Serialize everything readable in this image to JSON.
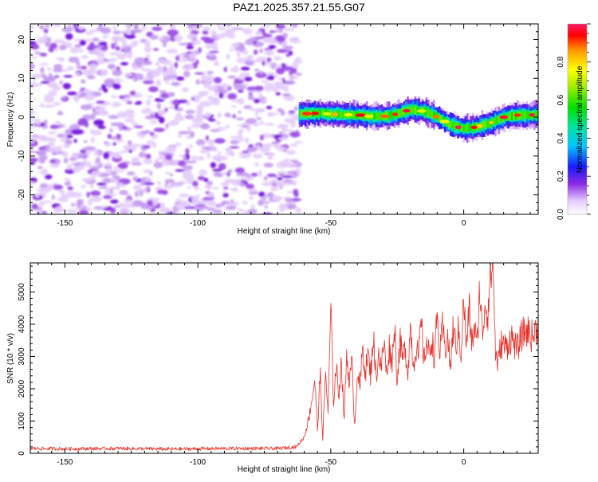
{
  "figure_title": "PAZ1.2025.357.21.55.G07",
  "chart_data": [
    {
      "type": "heatmap",
      "title": "PAZ1.2025.357.21.55.G07",
      "xlabel": "Height of straight line (km)",
      "ylabel": "Frequency (Hz)",
      "xlim": [
        -163,
        28
      ],
      "ylim": [
        -25,
        24
      ],
      "x_ticks": [
        -150,
        -100,
        -50,
        0
      ],
      "x_tick_labels": [
        "-150",
        "-100",
        "-50",
        "0"
      ],
      "y_ticks": [
        -20,
        -10,
        0,
        10,
        20
      ],
      "y_tick_labels": [
        "-20",
        "-10",
        "0",
        "10",
        "20"
      ],
      "noise_region_x": [
        -163,
        -62
      ],
      "signal_track": {
        "x": [
          -62,
          -55,
          -50,
          -45,
          -40,
          -35,
          -30,
          -25,
          -20,
          -15,
          -10,
          -5,
          0,
          5,
          10,
          15,
          20,
          25,
          28
        ],
        "frequency": [
          0.8,
          1.0,
          0.8,
          0.6,
          0.6,
          0.2,
          0.2,
          0.8,
          2.0,
          1.5,
          0.0,
          -2.0,
          -3.0,
          -2.5,
          -1.5,
          0.0,
          0.5,
          0.5,
          0.8
        ]
      },
      "colorbar": {
        "label": "Normalized spectral amplitude",
        "range": [
          0,
          1
        ],
        "ticks": [
          0.0,
          0.2,
          0.4,
          0.6,
          0.8
        ],
        "tick_labels": [
          "0.0",
          "0.2",
          "0.4",
          "0.6",
          "0.8"
        ]
      }
    },
    {
      "type": "line",
      "xlabel": "Height of straight line (km)",
      "ylabel": "SNR (10 * v/v)",
      "xlim": [
        -163,
        28
      ],
      "ylim": [
        0,
        5900
      ],
      "x_ticks": [
        -150,
        -100,
        -50,
        0
      ],
      "x_tick_labels": [
        "-150",
        "-100",
        "-50",
        "0"
      ],
      "y_ticks": [
        0,
        1000,
        2000,
        3000,
        4000,
        5000
      ],
      "y_tick_labels": [
        "0",
        "1000",
        "2000",
        "3000",
        "4000",
        "5000"
      ],
      "series": [
        {
          "name": "SNR",
          "color": "#e8302a",
          "x": [
            -163,
            -150,
            -130,
            -110,
            -90,
            -70,
            -63,
            -60,
            -58,
            -56,
            -55,
            -54,
            -53,
            -52,
            -51,
            -50,
            -49,
            -48,
            -47,
            -46,
            -45,
            -44,
            -43,
            -42,
            -41,
            -40,
            -39,
            -38,
            -37,
            -36,
            -35,
            -34,
            -33,
            -32,
            -31,
            -30,
            -29,
            -28,
            -27,
            -26,
            -25,
            -24,
            -23,
            -22,
            -21,
            -20,
            -19,
            -18,
            -17,
            -16,
            -15,
            -14,
            -13,
            -12,
            -11,
            -10,
            -9,
            -8,
            -7,
            -6,
            -5,
            -4,
            -3,
            -2,
            -1,
            0,
            1,
            2,
            3,
            4,
            5,
            6,
            7,
            8,
            9,
            10,
            11,
            12,
            13,
            14,
            16,
            18,
            20,
            22,
            24,
            26,
            28
          ],
          "values": [
            150,
            140,
            150,
            130,
            150,
            150,
            200,
            500,
            1200,
            2300,
            700,
            2500,
            400,
            2600,
            1200,
            4600,
            1500,
            2700,
            1800,
            2900,
            1000,
            3100,
            2200,
            2800,
            800,
            2600,
            2000,
            3300,
            2500,
            3100,
            2400,
            3700,
            2300,
            3100,
            2600,
            3500,
            2400,
            3300,
            2800,
            4000,
            2200,
            3500,
            2900,
            3300,
            2500,
            4000,
            2700,
            3300,
            3000,
            4100,
            2800,
            3500,
            3000,
            3600,
            2900,
            4300,
            3000,
            3900,
            3200,
            3600,
            2600,
            3900,
            3300,
            3800,
            3100,
            4800,
            3200,
            4500,
            3400,
            3900,
            3300,
            5200,
            3600,
            4700,
            4300,
            5500,
            5900,
            3000,
            2800,
            3400,
            3300,
            3600,
            3200,
            3700,
            3800,
            3600,
            4000
          ]
        }
      ]
    }
  ]
}
